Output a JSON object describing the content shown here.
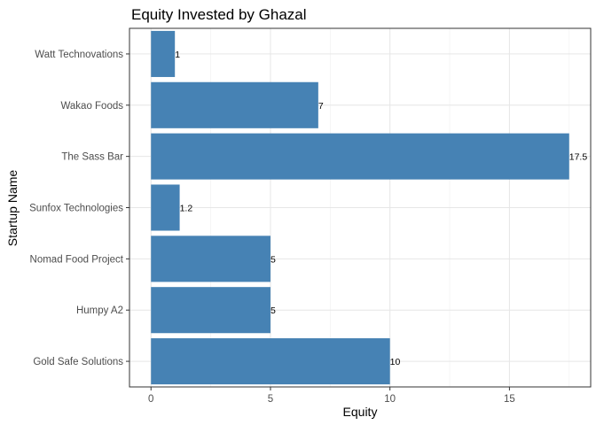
{
  "chart_data": {
    "type": "bar",
    "orientation": "horizontal",
    "title": "Equity Invested by Ghazal",
    "xlabel": "Equity",
    "ylabel": "Startup Name",
    "categories": [
      "Gold Safe Solutions",
      "Humpy A2",
      "Nomad Food Project",
      "Sunfox Technologies",
      "The Sass Bar",
      "Wakao Foods",
      "Watt Technovations"
    ],
    "values": [
      10,
      5,
      5,
      1.2,
      17.5,
      7,
      1
    ],
    "data_labels": [
      "10",
      "5",
      "5",
      "1.2",
      "17.5",
      "7",
      "1"
    ],
    "xlim": [
      -0.9,
      18.4
    ],
    "xticks": [
      0,
      5,
      10,
      15
    ],
    "xtick_labels": [
      "0",
      "5",
      "10",
      "15"
    ],
    "grid": true,
    "bar_color": "#4682B4"
  }
}
